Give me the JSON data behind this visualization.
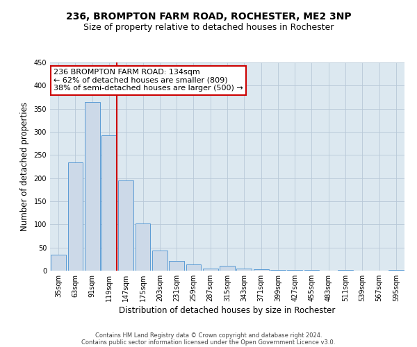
{
  "title": "236, BROMPTON FARM ROAD, ROCHESTER, ME2 3NP",
  "subtitle": "Size of property relative to detached houses in Rochester",
  "xlabel": "Distribution of detached houses by size in Rochester",
  "ylabel": "Number of detached properties",
  "bar_values": [
    35,
    234,
    364,
    293,
    195,
    102,
    44,
    21,
    13,
    5,
    10,
    4,
    3,
    1,
    2,
    1,
    0,
    1,
    0,
    0,
    2
  ],
  "bin_labels": [
    "35sqm",
    "63sqm",
    "91sqm",
    "119sqm",
    "147sqm",
    "175sqm",
    "203sqm",
    "231sqm",
    "259sqm",
    "287sqm",
    "315sqm",
    "343sqm",
    "371sqm",
    "399sqm",
    "427sqm",
    "455sqm",
    "483sqm",
    "511sqm",
    "539sqm",
    "567sqm",
    "595sqm"
  ],
  "bar_color": "#ccd9e8",
  "bar_edge_color": "#5b9bd5",
  "vline_color": "#cc0000",
  "annotation_title": "236 BROMPTON FARM ROAD: 134sqm",
  "annotation_line1": "← 62% of detached houses are smaller (809)",
  "annotation_line2": "38% of semi-detached houses are larger (500) →",
  "annotation_box_color": "#cc0000",
  "annotation_fill": "#ffffff",
  "ylim": [
    0,
    450
  ],
  "yticks": [
    0,
    50,
    100,
    150,
    200,
    250,
    300,
    350,
    400,
    450
  ],
  "background_color": "#ffffff",
  "plot_bg_color": "#dce8f0",
  "grid_color": "#b8c8d8",
  "footer1": "Contains HM Land Registry data © Crown copyright and database right 2024.",
  "footer2": "Contains public sector information licensed under the Open Government Licence v3.0.",
  "title_fontsize": 10,
  "subtitle_fontsize": 9,
  "axis_label_fontsize": 8.5,
  "tick_fontsize": 7,
  "annotation_fontsize": 8,
  "footer_fontsize": 6
}
